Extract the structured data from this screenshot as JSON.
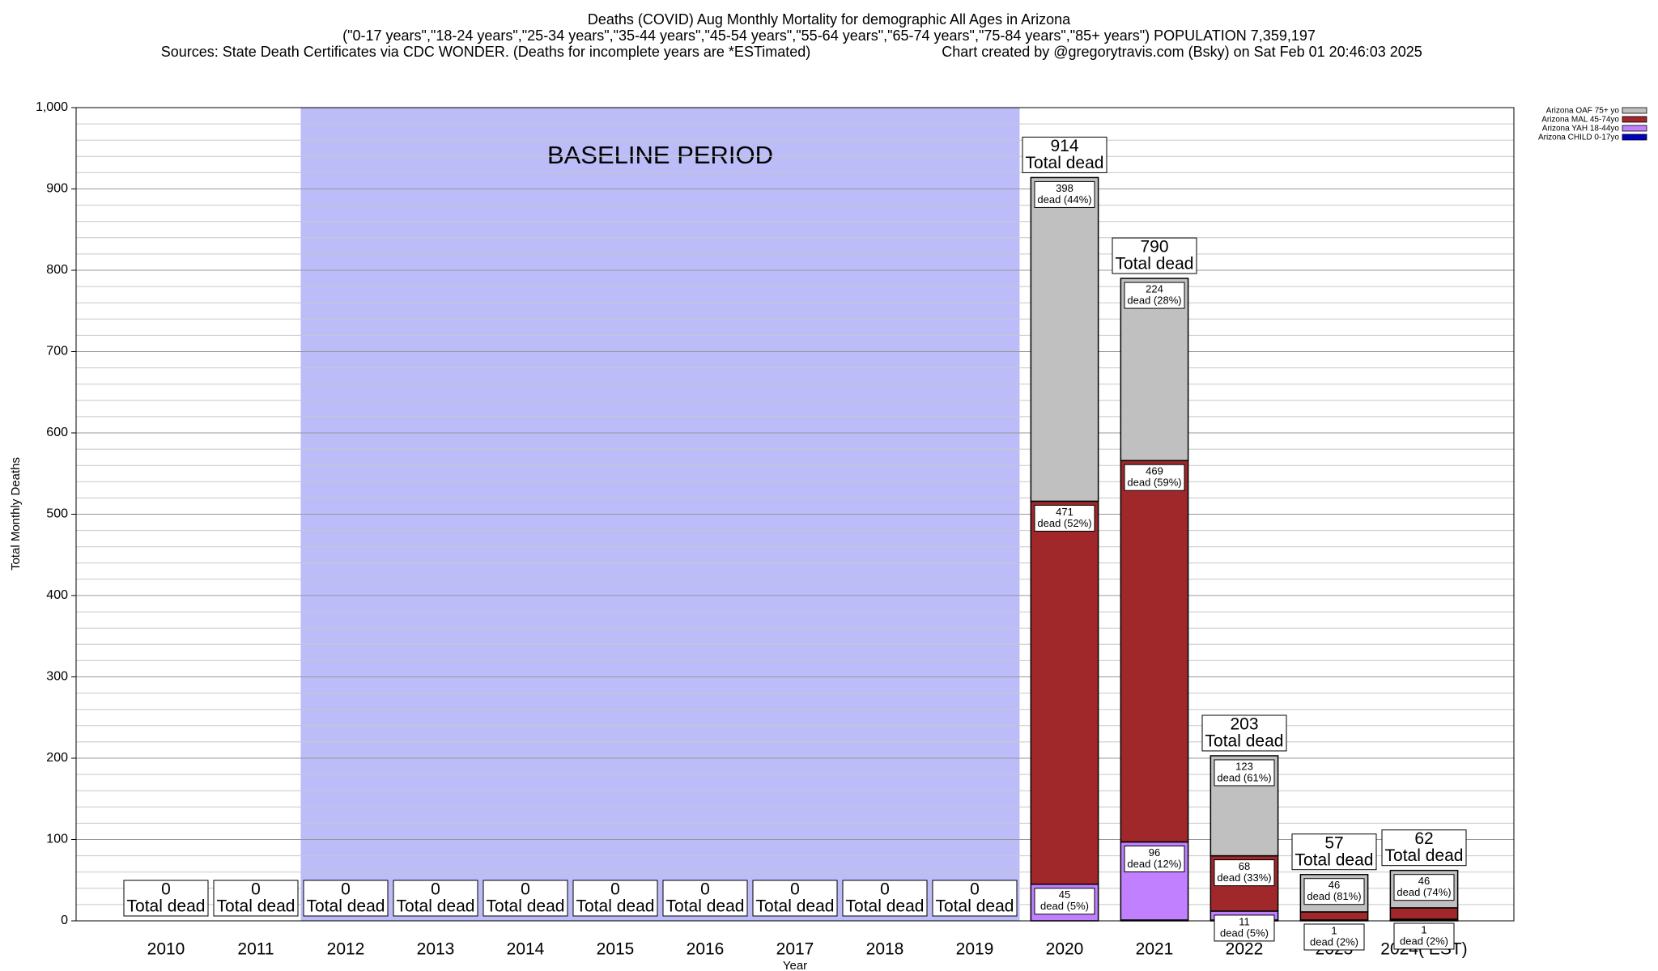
{
  "chart_data": {
    "type": "stacked_bar",
    "title": "Deaths (COVID) Aug Monthly Mortality for demographic All Ages in Arizona",
    "subtitle": "(\"0-17 years\",\"18-24 years\",\"25-34 years\",\"35-44 years\",\"45-54 years\",\"55-64 years\",\"65-74 years\",\"75-84 years\",\"85+ years\") POPULATION 7,359,197",
    "source": "Sources: State Death Certificates via CDC WONDER. (Deaths for incomplete years are *ESTimated)",
    "credit": "Chart created by @gregorytravis.com (Bsky) on Sat Feb 01 20:46:03 2025",
    "x_label": "Year",
    "y_label": "Total Monthly Deaths",
    "categories": [
      "2010",
      "2011",
      "2012",
      "2013",
      "2014",
      "2015",
      "2016",
      "2017",
      "2018",
      "2019",
      "2020",
      "2021",
      "2022",
      "2023",
      "2024( EST)"
    ],
    "series": [
      {
        "name": "Arizona CHILD 0-17yo",
        "color": "#0000c0",
        "values": [
          0,
          0,
          0,
          0,
          0,
          0,
          0,
          0,
          0,
          0,
          0,
          1,
          1,
          0,
          1
        ]
      },
      {
        "name": "Arizona YAH 18-44yo",
        "color": "#c080ff",
        "values": [
          0,
          0,
          0,
          0,
          0,
          0,
          0,
          0,
          0,
          0,
          45,
          96,
          11,
          1,
          1
        ],
        "value_notes": [
          null,
          null,
          null,
          null,
          null,
          null,
          null,
          null,
          null,
          null,
          "dead (5%)",
          "dead (12%)",
          "dead (5%)",
          "dead (2%)",
          "dead (2%)"
        ]
      },
      {
        "name": "Arizona MAL 45-74yo",
        "color": "#a0282a",
        "values": [
          0,
          0,
          0,
          0,
          0,
          0,
          0,
          0,
          0,
          0,
          471,
          469,
          68,
          10,
          14
        ],
        "value_notes": [
          null,
          null,
          null,
          null,
          null,
          null,
          null,
          null,
          null,
          null,
          "dead (52%)",
          "dead (59%)",
          "dead (33%)",
          null,
          null
        ]
      },
      {
        "name": "Arizona OAF 75+ yo",
        "color": "#c0c0c0",
        "values": [
          0,
          0,
          0,
          0,
          0,
          0,
          0,
          0,
          0,
          0,
          398,
          224,
          123,
          46,
          46
        ],
        "value_notes": [
          null,
          null,
          null,
          null,
          null,
          null,
          null,
          null,
          null,
          null,
          "dead (44%)",
          "dead (28%)",
          "dead (61%)",
          "dead (81%)",
          "dead (74%)"
        ]
      }
    ],
    "totals": [
      0,
      0,
      0,
      0,
      0,
      0,
      0,
      0,
      0,
      0,
      914,
      790,
      203,
      57,
      62
    ],
    "total_label": "Total dead",
    "baseline": {
      "label": "BASELINE PERIOD",
      "from": "2012",
      "to": "2019",
      "color": "#bcbcf8"
    },
    "ylim": [
      0,
      1000
    ],
    "yticks": [
      0,
      100,
      200,
      300,
      400,
      500,
      600,
      700,
      800,
      900,
      {
        "value": 1000,
        "label": "1,000"
      }
    ],
    "yminor": [
      20,
      40,
      60,
      80,
      120,
      140,
      160,
      180,
      220,
      240,
      260,
      280,
      320,
      340,
      360,
      380,
      420,
      440,
      460,
      480,
      520,
      540,
      560,
      580,
      620,
      640,
      660,
      680,
      720,
      740,
      760,
      780,
      820,
      840,
      860,
      880,
      920,
      940,
      960,
      980
    ],
    "grid": true,
    "legend": "top-right"
  }
}
